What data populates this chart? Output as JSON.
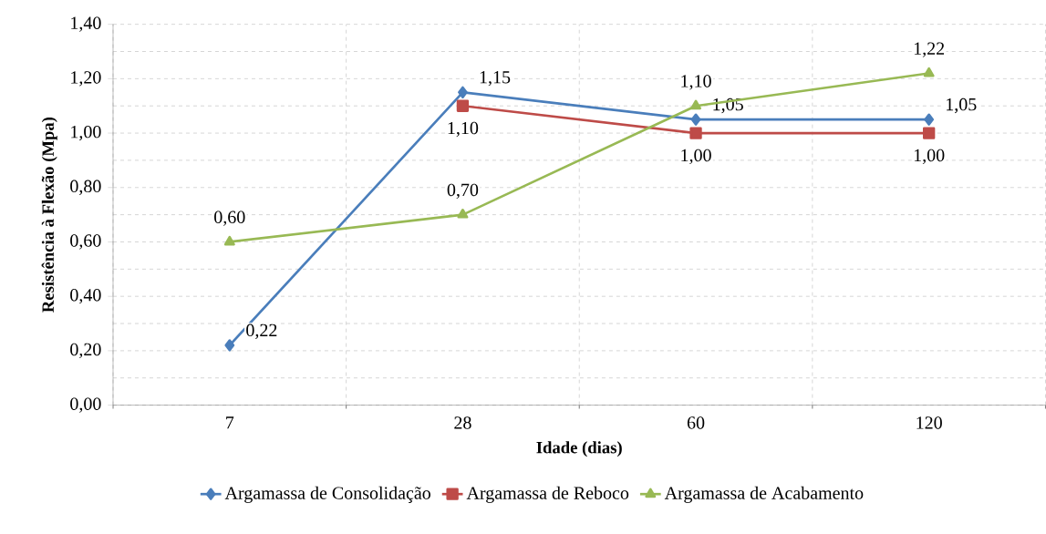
{
  "chart_data": {
    "type": "line",
    "xlabel": "Idade (dias)",
    "ylabel": "Resistência à Flexão (Mpa)",
    "categories": [
      "7",
      "28",
      "60",
      "120"
    ],
    "series": [
      {
        "name": "Argamassa de Consolidação",
        "color": "#4a7ebb",
        "marker": "diamond",
        "values": [
          0.22,
          1.15,
          1.05,
          1.05
        ],
        "value_labels": [
          "0,22",
          "1,15",
          "1,05",
          "1,05"
        ]
      },
      {
        "name": "Argamassa de Reboco",
        "color": "#be4b48",
        "marker": "square",
        "values": [
          null,
          1.1,
          1.0,
          1.0
        ],
        "value_labels": [
          null,
          "1,10",
          "1,00",
          "1,00"
        ]
      },
      {
        "name": "Argamassa de Acabamento",
        "color": "#98b954",
        "marker": "triangle",
        "values": [
          0.6,
          0.7,
          1.1,
          1.22
        ],
        "value_labels": [
          "0,60",
          "0,70",
          "1,10",
          "1,22"
        ]
      }
    ],
    "ylim": [
      0,
      1.4
    ],
    "yticks": [
      {
        "value": 0,
        "label": "0,00"
      },
      {
        "value": 0.2,
        "label": "0,20"
      },
      {
        "value": 0.4,
        "label": "0,40"
      },
      {
        "value": 0.6,
        "label": "0,60"
      },
      {
        "value": 0.8,
        "label": "0,80"
      },
      {
        "value": 1.0,
        "label": "1,00"
      },
      {
        "value": 1.2,
        "label": "1,20"
      },
      {
        "value": 1.4,
        "label": "1,40"
      }
    ],
    "grid": true,
    "legend": "bottom"
  }
}
